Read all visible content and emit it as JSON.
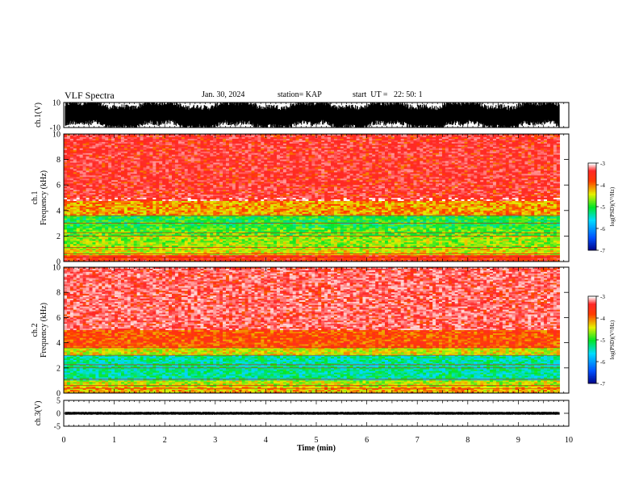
{
  "header": {
    "title": "VLF Spectra",
    "date": "Jan. 30, 2024",
    "station": "station= KAP",
    "start": "start  UT =   22: 50: 1"
  },
  "chart_data": [
    {
      "type": "line",
      "panel": "ch1-waveform",
      "ylabel": "ch.1(V)",
      "ylim": [
        -10,
        10
      ],
      "yticks": [
        10,
        -10
      ],
      "xlim": [
        0,
        10
      ],
      "description_values": {
        "envelope_min": -10,
        "envelope_max": 10
      }
    },
    {
      "type": "heatmap",
      "panel": "ch1-spectrogram",
      "ylabel": "ch.1\nFrequency (kHz)",
      "ylabel_lines": [
        "ch.1",
        "Frequency (kHz)"
      ],
      "ylim": [
        0,
        10
      ],
      "yticks": [
        0,
        2,
        4,
        6,
        8,
        10
      ],
      "xlim": [
        0,
        10
      ],
      "data_end_min": 9.82,
      "colorbar": {
        "label": "log(PSD)(V²/Hz)",
        "ticks": [
          -3,
          -4,
          -5,
          -6,
          -7
        ],
        "range": [
          -7,
          -3
        ]
      },
      "bands_khz": [
        {
          "from": 0,
          "to": 0.5,
          "level": -3.6
        },
        {
          "from": 0.5,
          "to": 1.0,
          "level": -4.4
        },
        {
          "from": 1.0,
          "to": 2.0,
          "level": -4.6
        },
        {
          "from": 2.0,
          "to": 2.6,
          "level": -4.8
        },
        {
          "from": 2.6,
          "to": 3.6,
          "level": -5.0
        },
        {
          "from": 3.6,
          "to": 4.8,
          "level": -4.1
        },
        {
          "from": 4.8,
          "to": 10.0,
          "level": -3.3
        }
      ]
    },
    {
      "type": "heatmap",
      "panel": "ch2-spectrogram",
      "ylabel": "ch.2\nFrequency (kHz)",
      "ylabel_lines": [
        "ch.2",
        "Frequency (kHz)"
      ],
      "ylim": [
        0,
        10
      ],
      "yticks": [
        0,
        2,
        4,
        6,
        8,
        10
      ],
      "xlim": [
        0,
        10
      ],
      "data_end_min": 9.82,
      "colorbar": {
        "label": "log(PSD)(V²/Hz)",
        "ticks": [
          -3,
          -4,
          -5,
          -6,
          -7
        ],
        "range": [
          -7,
          -3
        ]
      },
      "bands_khz": [
        {
          "from": 0,
          "to": 0.5,
          "level": -4.2
        },
        {
          "from": 0.5,
          "to": 1.0,
          "level": -4.5
        },
        {
          "from": 1.0,
          "to": 3.0,
          "level": -5.3
        },
        {
          "from": 3.0,
          "to": 3.6,
          "level": -4.4
        },
        {
          "from": 3.6,
          "to": 5.0,
          "level": -3.8
        },
        {
          "from": 5.0,
          "to": 10.0,
          "level": -3.2
        }
      ]
    },
    {
      "type": "line",
      "panel": "ch3-waveform",
      "ylabel": "ch.3(V)",
      "ylim": [
        -5,
        5
      ],
      "yticks": [
        5,
        0,
        -5
      ],
      "xlim": [
        0,
        10
      ],
      "xlabel": "Time  (min)",
      "xticks": [
        0,
        1,
        2,
        3,
        4,
        5,
        6,
        7,
        8,
        9,
        10
      ],
      "description_values": {
        "envelope_min": -0.6,
        "envelope_max": 0.6,
        "center": 0
      }
    }
  ]
}
